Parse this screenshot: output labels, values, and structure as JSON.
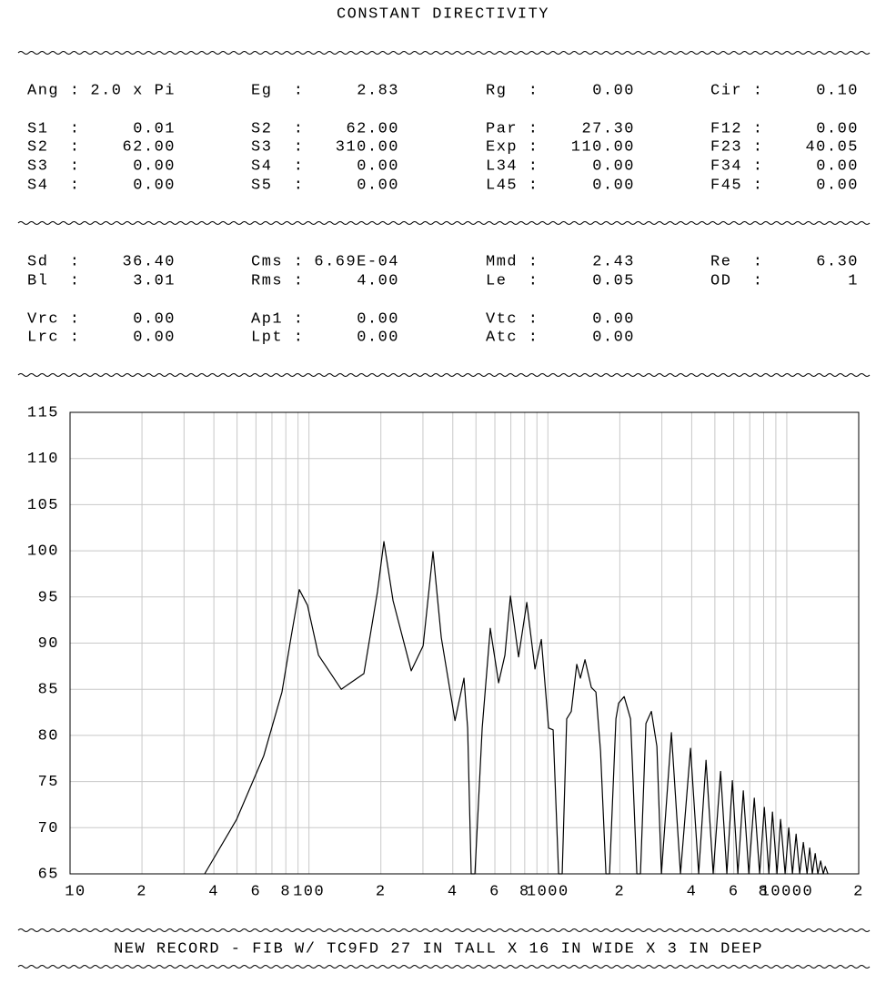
{
  "title": "CONSTANT DIRECTIVITY",
  "sections": [
    [
      [
        [
          [
            "Ang :",
            "2.0 x Pi"
          ],
          [
            "Eg  :",
            "2.83"
          ],
          [
            "Rg  :",
            "0.00"
          ],
          [
            "Cir :",
            "0.10"
          ]
        ]
      ],
      [
        [
          [
            "S1  :",
            "0.01"
          ],
          [
            "S2  :",
            "62.00"
          ],
          [
            "Par :",
            "27.30"
          ],
          [
            "F12 :",
            "0.00"
          ]
        ],
        [
          [
            "S2  :",
            "62.00"
          ],
          [
            "S3  :",
            "310.00"
          ],
          [
            "Exp :",
            "110.00"
          ],
          [
            "F23 :",
            "40.05"
          ]
        ],
        [
          [
            "S3  :",
            "0.00"
          ],
          [
            "S4  :",
            "0.00"
          ],
          [
            "L34 :",
            "0.00"
          ],
          [
            "F34 :",
            "0.00"
          ]
        ],
        [
          [
            "S4  :",
            "0.00"
          ],
          [
            "S5  :",
            "0.00"
          ],
          [
            "L45 :",
            "0.00"
          ],
          [
            "F45 :",
            "0.00"
          ]
        ]
      ]
    ],
    [
      [
        [
          [
            "Sd  :",
            "36.40"
          ],
          [
            "Cms :",
            "6.69E-04"
          ],
          [
            "Mmd :",
            "2.43"
          ],
          [
            "Re  :",
            "6.30"
          ]
        ],
        [
          [
            "Bl  :",
            "3.01"
          ],
          [
            "Rms :",
            "4.00"
          ],
          [
            "Le  :",
            "0.05"
          ],
          [
            "OD  :",
            "1"
          ]
        ]
      ],
      [
        [
          [
            "Vrc :",
            "0.00"
          ],
          [
            "Ap1 :",
            "0.00"
          ],
          [
            "Vtc :",
            "0.00"
          ]
        ],
        [
          [
            "Lrc :",
            "0.00"
          ],
          [
            "Lpt :",
            "0.00"
          ],
          [
            "Atc :",
            "0.00"
          ]
        ]
      ]
    ]
  ],
  "chart_data": {
    "type": "line",
    "log_x": true,
    "grid": true,
    "color": "#000000",
    "xlim": [
      10,
      20000
    ],
    "ylim": [
      65,
      115
    ],
    "xticks": [
      10,
      {
        "value": 20,
        "label": "2"
      },
      {
        "value": 40,
        "label": "4"
      },
      {
        "value": 60,
        "label": "6"
      },
      {
        "value": 80,
        "label": "8"
      },
      100,
      {
        "value": 200,
        "label": "2"
      },
      {
        "value": 400,
        "label": "4"
      },
      {
        "value": 600,
        "label": "6"
      },
      {
        "value": 800,
        "label": "8"
      },
      1000,
      {
        "value": 2000,
        "label": "2"
      },
      {
        "value": 4000,
        "label": "4"
      },
      {
        "value": 6000,
        "label": "6"
      },
      {
        "value": 8000,
        "label": "8"
      },
      10000,
      {
        "value": 20000,
        "label": "2"
      }
    ],
    "minor_xticks": [
      30,
      50,
      70,
      90,
      300,
      500,
      700,
      900,
      3000,
      5000,
      7000,
      9000
    ],
    "yticks": [
      65,
      70,
      75,
      80,
      85,
      90,
      95,
      100,
      105,
      110,
      115
    ],
    "x": [
      36.6,
      49.8,
      64.7,
      77.1,
      84.1,
      91.1,
      98.6,
      109.6,
      136.5,
      169.8,
      193.6,
      205.9,
      224.9,
      268,
      300.5,
      330.5,
      358,
      408.5,
      445.5,
      461.5,
      477.6,
      495,
      531,
      574,
      622,
      661,
      697,
      754,
      816,
      883,
      939,
      1007,
      1052,
      1109,
      1148,
      1199,
      1253,
      1321,
      1368,
      1430,
      1520,
      1589,
      1661,
      1750,
      1812,
      1927,
      1978,
      2086,
      2218,
      2357,
      2441,
      2573,
      2712,
      2860,
      2987,
      3289,
      3590,
      3954,
      4277,
      4592,
      4920,
      5284,
      5613,
      5918,
      6240,
      6577,
      6934,
      7311,
      7696,
      8054,
      8414,
      8710,
      9099,
      9419,
      9840,
      10190,
      10560,
      10940,
      11320,
      11730,
      12160,
      12470,
      12790,
      13150,
      13490,
      13860,
      14220,
      14490,
      14860
    ],
    "values": [
      65,
      70.9,
      77.8,
      84.7,
      90.6,
      95.8,
      94.1,
      88.7,
      85.0,
      86.7,
      95.6,
      101,
      94.6,
      87.0,
      89.7,
      99.9,
      90.6,
      81.6,
      86.2,
      80.8,
      65,
      65,
      80.8,
      91.6,
      85.7,
      88.7,
      95.1,
      88.5,
      94.4,
      87.2,
      90.4,
      80.8,
      80.6,
      65,
      65,
      81.8,
      82.6,
      87.7,
      86.2,
      88.2,
      85.2,
      84.7,
      78.3,
      65,
      65,
      81.8,
      83.5,
      84.2,
      81.8,
      65,
      65,
      81.3,
      82.6,
      78.8,
      65,
      80.3,
      65,
      78.6,
      65,
      77.3,
      65,
      76.1,
      65,
      75.1,
      65,
      74.0,
      65,
      73.2,
      65,
      72.2,
      65,
      71.7,
      65,
      70.9,
      65,
      70.0,
      65,
      69.3,
      65,
      68.4,
      65,
      67.8,
      65,
      67.2,
      65,
      66.4,
      65,
      65.8,
      65
    ]
  },
  "footer": "NEW RECORD - FIB W/ TC9FD 27 IN TALL X 16 IN WIDE X 3 IN DEEP"
}
